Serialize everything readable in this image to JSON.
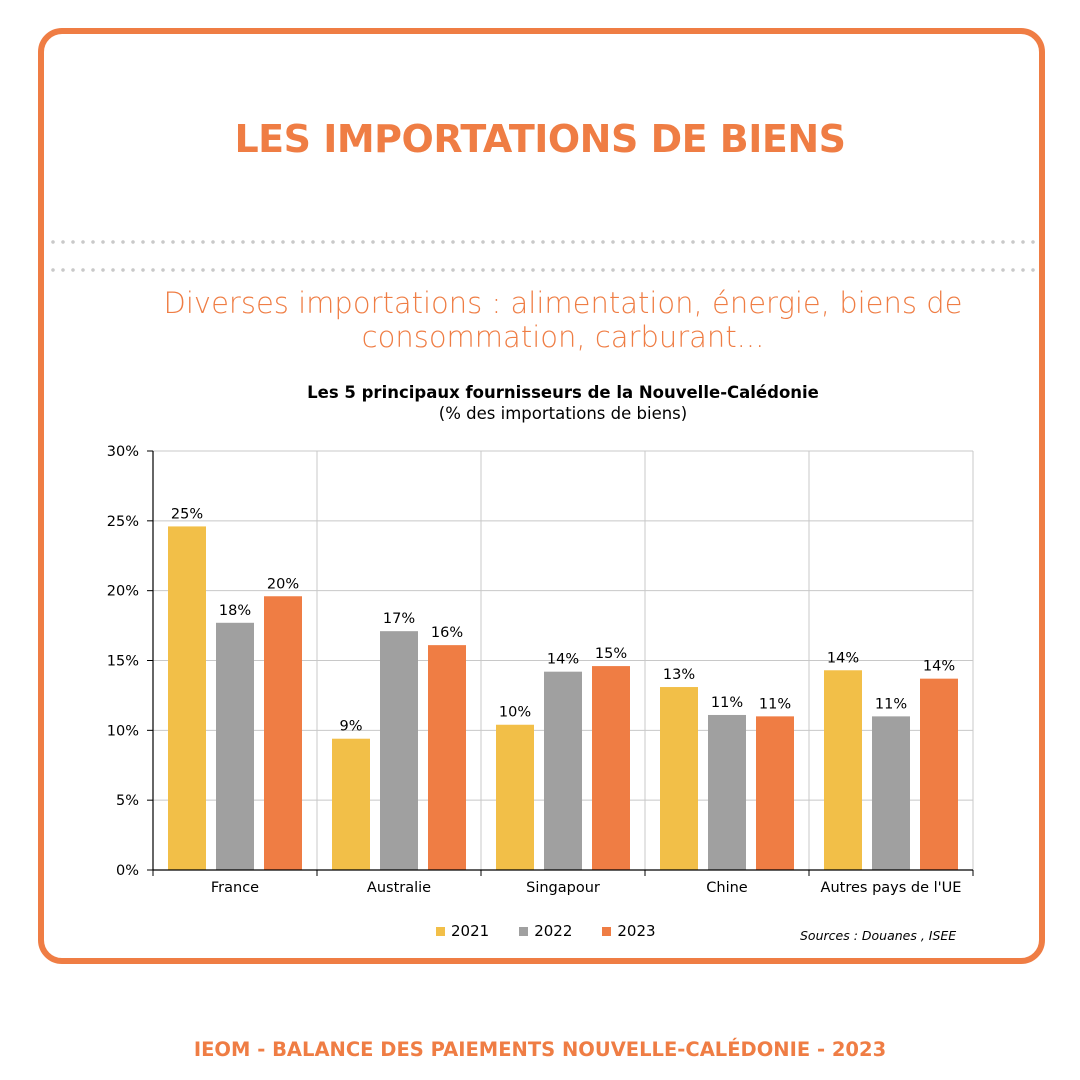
{
  "header": {
    "title": "LES IMPORTATIONS DE BIENS",
    "subtitle_line1": "Diverses importations : alimentation, énergie, biens de",
    "subtitle_line2": "consommation, carburant..."
  },
  "footer": {
    "text": "IEOM - BALANCE DES PAIEMENTS NOUVELLE-CALÉDONIE - 2023"
  },
  "colors": {
    "accent": "#ef7d44",
    "series_2021": "#f2bf48",
    "series_2022": "#a0a0a0",
    "series_2023": "#ef7d44"
  },
  "chart_data": {
    "type": "bar",
    "title": "Les 5 principaux fournisseurs de la Nouvelle-Calédonie",
    "subtitle": "(% des importations de biens)",
    "xlabel": "",
    "ylabel": "",
    "categories": [
      "France",
      "Australie",
      "Singapour",
      "Chine",
      "Autres pays de l'UE"
    ],
    "series": [
      {
        "name": "2021",
        "color": "#f2bf48",
        "values": [
          24.6,
          9.4,
          10.4,
          13.1,
          14.3
        ],
        "labels": [
          "25%",
          "9%",
          "10%",
          "13%",
          "14%"
        ]
      },
      {
        "name": "2022",
        "color": "#a0a0a0",
        "values": [
          17.7,
          17.1,
          14.2,
          11.1,
          11.0
        ],
        "labels": [
          "18%",
          "17%",
          "14%",
          "11%",
          "11%"
        ]
      },
      {
        "name": "2023",
        "color": "#ef7d44",
        "values": [
          19.6,
          16.1,
          14.6,
          11.0,
          13.7
        ],
        "labels": [
          "20%",
          "16%",
          "15%",
          "11%",
          "14%"
        ]
      }
    ],
    "ylim": [
      0,
      30
    ],
    "yticks": [
      0,
      5,
      10,
      15,
      20,
      25,
      30
    ],
    "ytick_labels": [
      "0%",
      "5%",
      "10%",
      "15%",
      "20%",
      "25%",
      "30%"
    ],
    "grid": true,
    "legend_position": "bottom-center",
    "source": "Sources : Douanes , ISEE"
  }
}
